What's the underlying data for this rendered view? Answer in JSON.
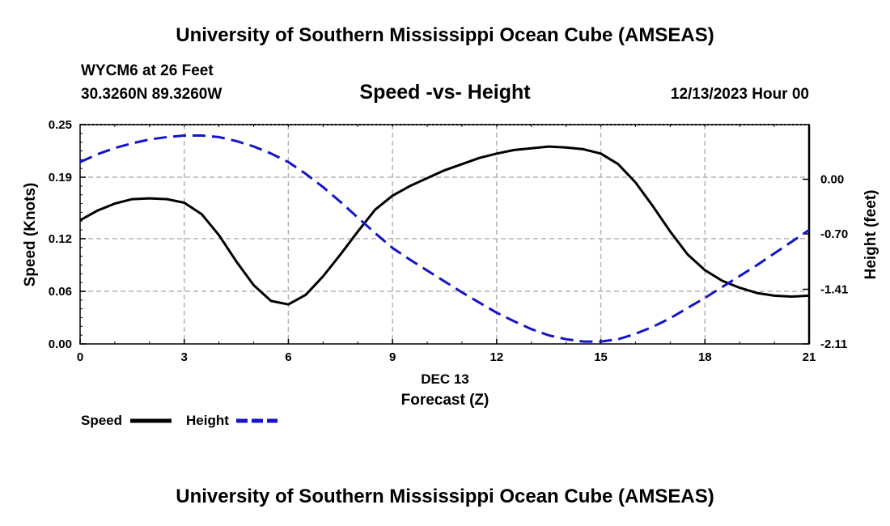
{
  "page": {
    "header": "University of Southern Mississippi Ocean Cube (AMSEAS)",
    "footer": "University of Southern Mississippi Ocean Cube (AMSEAS)",
    "station": "WYCM6 at 26 Feet",
    "coords": "30.3260N  89.3260W",
    "date": "12/13/2023 Hour 00"
  },
  "colors": {
    "speed": "#000000",
    "height": "#1414c8",
    "grid": "#b4b4b4"
  },
  "chart_data": {
    "type": "line",
    "title": "Speed -vs- Height",
    "xlabel": "Forecast (Z)",
    "date_label": "DEC 13",
    "ylabel_left": "Speed (Knots)",
    "ylabel_right": "Height (feet)",
    "xlim": [
      0,
      21
    ],
    "ylim_left": [
      0,
      0.25
    ],
    "ylim_right": [
      -2.11,
      0.7
    ],
    "x_ticks": [
      "0",
      "3",
      "6",
      "9",
      "12",
      "15",
      "18",
      "21"
    ],
    "y_ticks_left": [
      "0.00",
      "0.06",
      "0.12",
      "0.19",
      "0.25"
    ],
    "y_ticks_right": [
      "-2.11",
      "-1.41",
      "-0.70",
      "0.00"
    ],
    "legend": [
      "Speed",
      "Height"
    ],
    "series": [
      {
        "name": "Speed",
        "axis": "left",
        "style": "solid",
        "x": [
          0,
          0.5,
          1,
          1.5,
          2,
          2.5,
          3,
          3.5,
          4,
          4.5,
          5,
          5.5,
          6,
          6.5,
          7,
          7.5,
          8,
          8.5,
          9,
          9.5,
          10,
          10.5,
          11,
          11.5,
          12,
          12.5,
          13,
          13.5,
          14,
          14.5,
          15,
          15.5,
          16,
          16.5,
          17,
          17.5,
          18,
          18.5,
          19,
          19.5,
          20,
          20.5,
          21
        ],
        "values": [
          0.141,
          0.152,
          0.16,
          0.165,
          0.166,
          0.165,
          0.161,
          0.148,
          0.124,
          0.094,
          0.067,
          0.049,
          0.045,
          0.056,
          0.077,
          0.102,
          0.128,
          0.153,
          0.169,
          0.18,
          0.189,
          0.198,
          0.205,
          0.212,
          0.217,
          0.221,
          0.223,
          0.225,
          0.224,
          0.222,
          0.217,
          0.205,
          0.184,
          0.157,
          0.128,
          0.102,
          0.084,
          0.072,
          0.064,
          0.058,
          0.055,
          0.054,
          0.055
        ]
      },
      {
        "name": "Height",
        "axis": "right",
        "style": "dashed",
        "x": [
          0,
          0.5,
          1,
          1.5,
          2,
          2.5,
          3,
          3.5,
          4,
          4.5,
          5,
          5.5,
          6,
          6.5,
          7,
          7.5,
          8,
          8.5,
          9,
          9.5,
          10,
          10.5,
          11,
          11.5,
          12,
          12.5,
          13,
          13.5,
          14,
          14.5,
          15,
          15.5,
          16,
          16.5,
          17,
          17.5,
          18,
          18.5,
          19,
          19.5,
          20,
          20.5,
          21
        ],
        "values": [
          0.22,
          0.32,
          0.4,
          0.46,
          0.51,
          0.54,
          0.56,
          0.56,
          0.54,
          0.49,
          0.42,
          0.33,
          0.22,
          0.07,
          -0.1,
          -0.29,
          -0.49,
          -0.69,
          -0.88,
          -1.03,
          -1.17,
          -1.31,
          -1.45,
          -1.58,
          -1.71,
          -1.82,
          -1.92,
          -2.0,
          -2.05,
          -2.08,
          -2.08,
          -2.05,
          -1.98,
          -1.89,
          -1.78,
          -1.65,
          -1.52,
          -1.38,
          -1.24,
          -1.1,
          -0.95,
          -0.8,
          -0.65
        ]
      }
    ]
  }
}
